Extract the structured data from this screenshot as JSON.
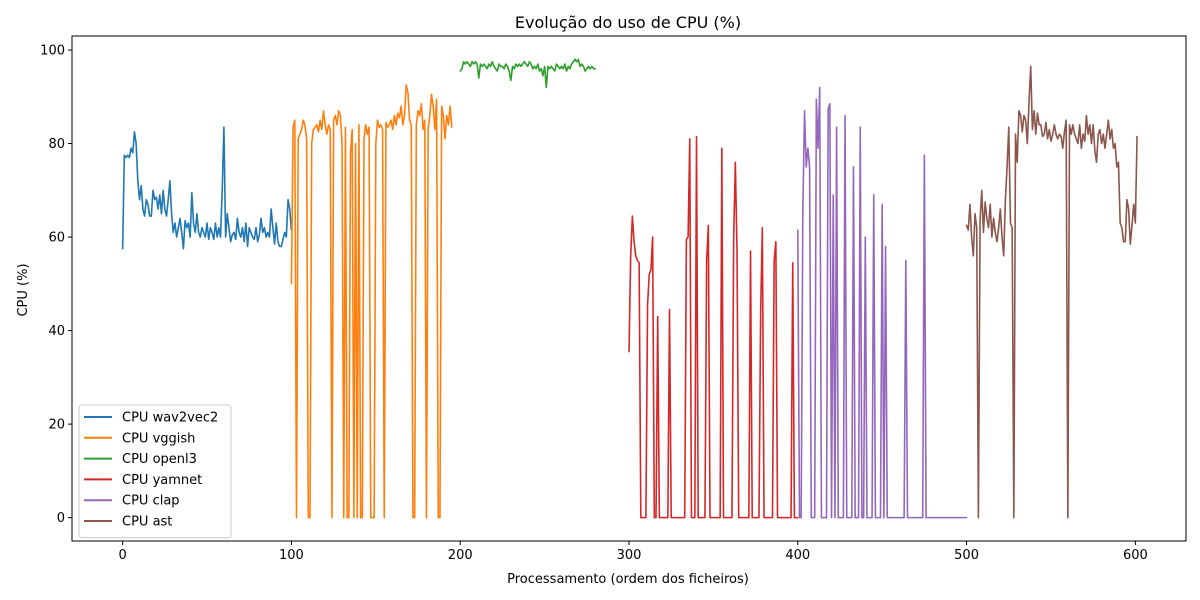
{
  "chart_data": {
    "type": "line",
    "title": "Evolução do uso de CPU (%)",
    "xlabel": "Processamento (ordem dos ficheiros)",
    "ylabel": "CPU (%)",
    "xlim": [
      -30,
      630
    ],
    "ylim": [
      -5,
      103
    ],
    "xticks": [
      0,
      100,
      200,
      300,
      400,
      500,
      600
    ],
    "yticks": [
      0,
      20,
      40,
      60,
      80,
      100
    ],
    "grid": false,
    "legend": "lower-left",
    "series": [
      {
        "name": "CPU wav2vec2",
        "color": "#1f77b4",
        "x_start": 0,
        "values": [
          57.5,
          77.5,
          77,
          77.5,
          77,
          79,
          78,
          82.5,
          80,
          72,
          68,
          71,
          66,
          64.5,
          68,
          67,
          64.5,
          64.5,
          70,
          68,
          68.5,
          66,
          69,
          65,
          70,
          66,
          64.5,
          68,
          72,
          65,
          61,
          63,
          60,
          62,
          64,
          61,
          57.5,
          63.5,
          62,
          63,
          60,
          69.5,
          63,
          61,
          65,
          61,
          60,
          62,
          61,
          60,
          63,
          59.5,
          62,
          61,
          59.5,
          63,
          60,
          62,
          60,
          70,
          83.5,
          60,
          65,
          62,
          59,
          60.5,
          61,
          59.5,
          64,
          61,
          60,
          62,
          59,
          63,
          58,
          62,
          61,
          60,
          59.5,
          62,
          59,
          60.5,
          64,
          61,
          62,
          60,
          61,
          60,
          66,
          62,
          58.5,
          63,
          59,
          58,
          58,
          59.5,
          61,
          60,
          68,
          66,
          61.5
        ]
      },
      {
        "name": "CPU vggish",
        "color": "#ff7f0e",
        "x_start": 100,
        "values": [
          50,
          83.5,
          85,
          0,
          81,
          82,
          83,
          85,
          84,
          81,
          0,
          0,
          80,
          83,
          83.5,
          84,
          82.5,
          85,
          83,
          87,
          84,
          82,
          84,
          83,
          0,
          85,
          86,
          84,
          87,
          86,
          80,
          0,
          83.5,
          0,
          0,
          78,
          83,
          0,
          80,
          0,
          84,
          0,
          0,
          81,
          84,
          82,
          83.5,
          0,
          0,
          0,
          80,
          85,
          83.5,
          84,
          83,
          0,
          84.5,
          83.5,
          84,
          85,
          83,
          86,
          84,
          86.5,
          85.5,
          88,
          84,
          86,
          92.5,
          91,
          85,
          84,
          0,
          0,
          84,
          87,
          86,
          88.5,
          83,
          85,
          0,
          83,
          86,
          90.5,
          88,
          83,
          89.5,
          0,
          0,
          88,
          86,
          81,
          86,
          84,
          88,
          83.5
        ]
      },
      {
        "name": "CPU openl3",
        "color": "#2ca02c",
        "x_start": 200,
        "values": [
          95.5,
          96,
          97.5,
          97,
          97.5,
          97,
          96.5,
          97.5,
          97,
          97.5,
          97,
          94,
          97,
          96.5,
          97,
          96.5,
          96,
          97,
          96.5,
          97.5,
          96.5,
          96,
          95.5,
          97,
          96.5,
          96.5,
          96,
          97,
          96.5,
          95.5,
          93.5,
          96.5,
          96,
          97,
          96.5,
          97,
          96.5,
          97,
          97.5,
          97,
          96.5,
          97.5,
          97,
          96,
          96.5,
          96,
          97,
          95.5,
          96,
          94.5,
          96.5,
          92,
          96.5,
          96,
          96.5,
          96,
          95.5,
          97,
          96.5,
          96,
          96.5,
          96,
          97,
          95.5,
          96.5,
          96,
          97,
          97.5,
          98,
          97.5,
          98,
          96.5,
          97,
          96.5,
          95.5,
          96,
          96.5,
          96,
          96.5,
          96,
          96
        ]
      },
      {
        "name": "CPU yamnet",
        "color": "#d62728",
        "x_start": 300,
        "values": [
          35.5,
          56,
          64.5,
          59,
          56,
          55,
          54.5,
          0,
          0,
          0,
          0,
          45.5,
          52,
          53,
          60,
          0,
          0,
          43,
          0,
          0,
          0,
          0,
          0,
          0,
          44.5,
          0,
          0,
          0,
          0,
          0,
          0,
          0,
          0,
          0,
          59.5,
          60,
          81,
          0,
          0,
          0,
          81.5,
          0,
          0,
          0,
          0,
          0,
          55,
          62.5,
          0,
          0,
          0,
          0,
          0,
          0,
          0,
          79,
          0,
          0,
          0,
          0,
          0,
          0,
          59.5,
          76,
          57,
          0,
          0,
          0,
          0,
          0,
          0,
          0,
          57,
          0,
          0,
          0,
          0,
          0,
          44,
          62,
          0,
          0,
          0,
          0,
          0,
          0,
          55,
          59,
          0,
          0,
          0,
          0,
          0,
          0,
          0,
          0,
          0,
          54.5,
          0,
          0,
          0
        ]
      },
      {
        "name": "CPU clap",
        "color": "#9467bd",
        "x_start": 400,
        "values": [
          61.5,
          0,
          0,
          66,
          87,
          75,
          79,
          75,
          0,
          0,
          0,
          89.5,
          79,
          92,
          0,
          0,
          0,
          0,
          87.5,
          88.5,
          0,
          69,
          0,
          83.5,
          0,
          0,
          0,
          0,
          86,
          0,
          0,
          0,
          0,
          75,
          0,
          0,
          0,
          83.5,
          0,
          0,
          60,
          0,
          0,
          0,
          0,
          69,
          0,
          0,
          0,
          0,
          67,
          0,
          58,
          0,
          0,
          0,
          0,
          0,
          0,
          0,
          0,
          0,
          0,
          0,
          55,
          0,
          0,
          0,
          0,
          0,
          0,
          0,
          0,
          0,
          0,
          77.5,
          0,
          0,
          0,
          0,
          0,
          0,
          0,
          0,
          0,
          0,
          0,
          0,
          0,
          0,
          0,
          0,
          0,
          0,
          0,
          0,
          0,
          0,
          0,
          0,
          0
        ]
      },
      {
        "name": "CPU ast",
        "color": "#8c564b",
        "x_start": 500,
        "values": [
          62.5,
          61.5,
          67,
          60,
          56,
          65,
          62,
          0,
          63.5,
          70,
          61,
          67.5,
          64,
          62,
          67,
          60,
          64,
          61,
          59,
          62,
          66,
          60,
          56,
          68,
          75,
          83.5,
          63,
          62,
          0,
          82,
          76,
          87,
          86,
          82.5,
          86,
          85,
          80,
          89,
          96.5,
          83,
          87,
          82,
          86.5,
          84,
          84,
          81.5,
          82,
          84.5,
          81,
          83,
          80.5,
          82,
          84,
          82,
          81,
          82,
          81.5,
          79,
          82.5,
          85,
          0,
          84,
          82,
          84,
          82,
          81,
          80,
          84,
          79,
          82,
          80.5,
          86,
          82,
          84,
          80,
          84,
          78.5,
          76,
          82,
          83,
          80,
          82,
          79,
          82,
          85,
          81,
          83,
          79,
          80,
          75,
          76,
          63,
          62,
          59,
          59,
          68,
          66,
          58.5,
          62.5,
          67,
          63,
          81.5
        ]
      }
    ]
  }
}
